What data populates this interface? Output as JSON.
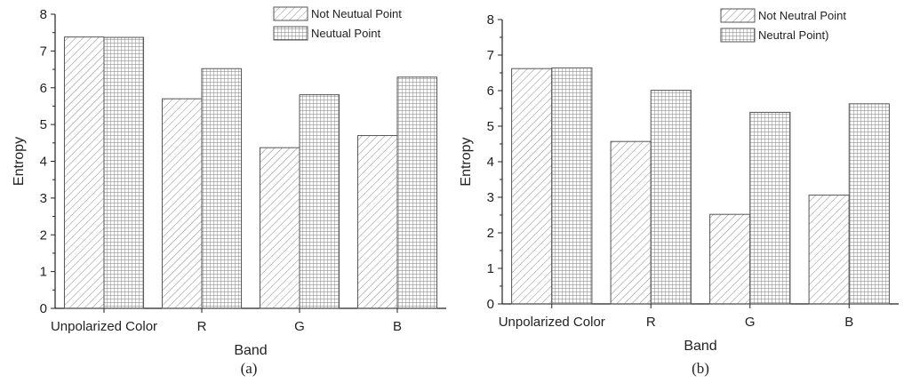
{
  "chart_data": [
    {
      "type": "bar",
      "panel_label": "(a)",
      "xlabel": "Band",
      "ylabel": "Entropy",
      "ylim": [
        0,
        8
      ],
      "yticks": [
        "0",
        "1",
        "2",
        "3",
        "4",
        "5",
        "6",
        "7",
        "8"
      ],
      "categories": [
        "Unpolarized Color",
        "R",
        "G",
        "B"
      ],
      "legend_position": "top-right",
      "series": [
        {
          "name": "Not Neutual Point",
          "pattern": "diagonal",
          "values": [
            7.38,
            5.7,
            4.37,
            4.7
          ]
        },
        {
          "name": "Neutual Point",
          "pattern": "grid",
          "values": [
            7.37,
            6.52,
            5.81,
            6.29
          ]
        }
      ]
    },
    {
      "type": "bar",
      "panel_label": "(b)",
      "xlabel": "Band",
      "ylabel": "Entropy",
      "ylim": [
        0,
        8
      ],
      "yticks": [
        "0",
        "1",
        "2",
        "3",
        "4",
        "5",
        "6",
        "7",
        "8"
      ],
      "categories": [
        "Unpolarized Color",
        "R",
        "G",
        "B"
      ],
      "legend_position": "top-right",
      "series": [
        {
          "name": "Not Neutral Point",
          "pattern": "diagonal",
          "values": [
            6.62,
            4.57,
            2.52,
            3.06
          ]
        },
        {
          "name": "Neutral Point)",
          "pattern": "grid",
          "values": [
            6.64,
            6.01,
            5.39,
            5.63
          ]
        }
      ]
    }
  ],
  "colors": {
    "bar_stroke": "#555555",
    "pattern_line": "#8a8a8a",
    "axis": "#222222"
  }
}
